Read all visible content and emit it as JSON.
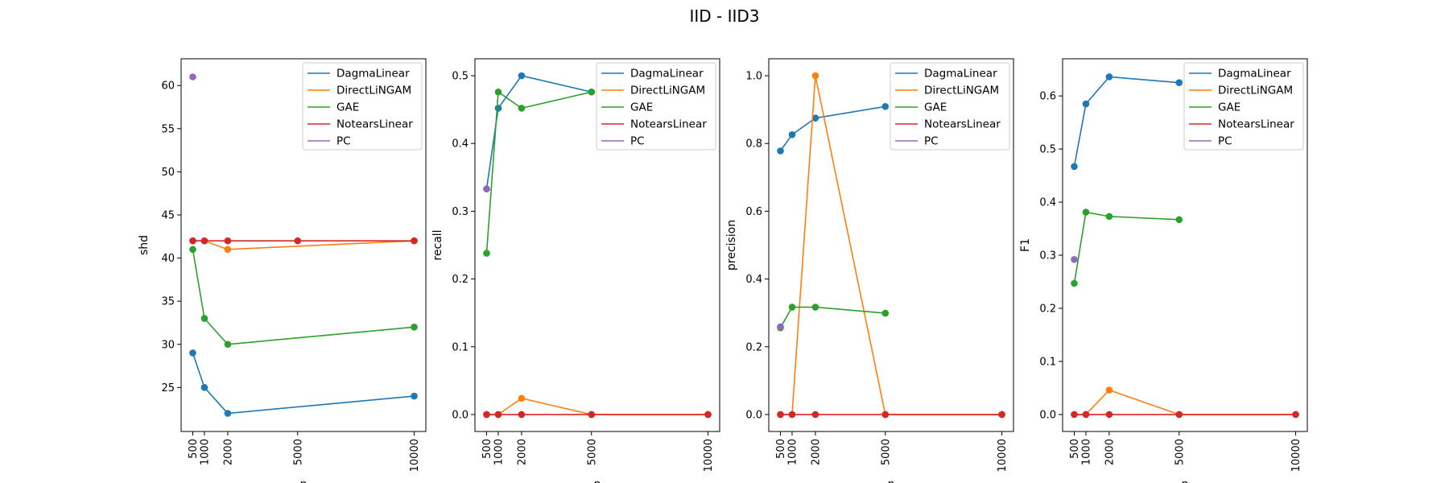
{
  "figure": {
    "title": "IID - IID3"
  },
  "chart_data": [
    {
      "type": "line",
      "xlabel": "n",
      "ylabel": "shd",
      "x": [
        500,
        1000,
        2000,
        5000,
        10000
      ],
      "x_ticks": [
        500,
        1000,
        2000,
        5000,
        10000
      ],
      "xlim": [
        0,
        10500
      ],
      "ylim": [
        19.9,
        63.1
      ],
      "y_ticks": [
        25,
        30,
        35,
        40,
        45,
        50,
        55,
        60
      ],
      "y_tick_labels": [
        "25",
        "30",
        "35",
        "40",
        "45",
        "50",
        "55",
        "60"
      ],
      "legend_position": "top-right",
      "series": [
        {
          "name": "DagmaLinear",
          "color": "#1f77b4",
          "values": [
            29,
            25,
            22,
            null,
            24
          ]
        },
        {
          "name": "DirectLiNGAM",
          "color": "#ff7f0e",
          "values": [
            42,
            42,
            41,
            null,
            42
          ]
        },
        {
          "name": "GAE",
          "color": "#2ca02c",
          "values": [
            41,
            33,
            30,
            null,
            32
          ]
        },
        {
          "name": "NotearsLinear",
          "color": "#d62728",
          "values": [
            42,
            42,
            42,
            42,
            42
          ]
        },
        {
          "name": "PC",
          "color": "#9467bd",
          "values": [
            61,
            null,
            null,
            null,
            null
          ]
        }
      ]
    },
    {
      "type": "line",
      "xlabel": "n",
      "ylabel": "recall",
      "x": [
        500,
        1000,
        2000,
        5000,
        10000
      ],
      "x_ticks": [
        500,
        1000,
        2000,
        5000,
        10000
      ],
      "xlim": [
        0,
        10500
      ],
      "ylim": [
        -0.025,
        0.525
      ],
      "y_ticks": [
        0.0,
        0.1,
        0.2,
        0.3,
        0.4,
        0.5
      ],
      "y_tick_labels": [
        "0.0",
        "0.1",
        "0.2",
        "0.3",
        "0.4",
        "0.5"
      ],
      "legend_position": "top-right",
      "series": [
        {
          "name": "DagmaLinear",
          "color": "#1f77b4",
          "values": [
            0.333,
            0.452,
            0.5,
            0.476,
            null
          ]
        },
        {
          "name": "DirectLiNGAM",
          "color": "#ff7f0e",
          "values": [
            0.0,
            0.0,
            0.024,
            0.0,
            0.0
          ]
        },
        {
          "name": "GAE",
          "color": "#2ca02c",
          "values": [
            0.238,
            0.476,
            0.452,
            0.476,
            null
          ]
        },
        {
          "name": "NotearsLinear",
          "color": "#d62728",
          "values": [
            0.0,
            0.0,
            0.0,
            0.0,
            0.0
          ]
        },
        {
          "name": "PC",
          "color": "#9467bd",
          "values": [
            0.333,
            null,
            null,
            null,
            null
          ]
        }
      ]
    },
    {
      "type": "line",
      "xlabel": "n",
      "ylabel": "precision",
      "x": [
        500,
        1000,
        2000,
        5000,
        10000
      ],
      "x_ticks": [
        500,
        1000,
        2000,
        5000,
        10000
      ],
      "xlim": [
        0,
        10500
      ],
      "ylim": [
        -0.05,
        1.05
      ],
      "y_ticks": [
        0.0,
        0.2,
        0.4,
        0.6,
        0.8,
        1.0
      ],
      "y_tick_labels": [
        "0.0",
        "0.2",
        "0.4",
        "0.6",
        "0.8",
        "1.0"
      ],
      "legend_position": "top-right",
      "series": [
        {
          "name": "DagmaLinear",
          "color": "#1f77b4",
          "values": [
            0.778,
            0.826,
            0.875,
            0.909,
            null
          ]
        },
        {
          "name": "DirectLiNGAM",
          "color": "#ff7f0e",
          "values": [
            0.0,
            0.0,
            1.0,
            0.0,
            0.0
          ]
        },
        {
          "name": "GAE",
          "color": "#2ca02c",
          "values": [
            0.256,
            0.317,
            0.317,
            0.299,
            null
          ]
        },
        {
          "name": "NotearsLinear",
          "color": "#d62728",
          "values": [
            0.0,
            0.0,
            0.0,
            0.0,
            0.0
          ]
        },
        {
          "name": "PC",
          "color": "#9467bd",
          "values": [
            0.259,
            null,
            null,
            null,
            null
          ]
        }
      ]
    },
    {
      "type": "line",
      "xlabel": "n",
      "ylabel": "F1",
      "x": [
        500,
        1000,
        2000,
        5000,
        10000
      ],
      "x_ticks": [
        500,
        1000,
        2000,
        5000,
        10000
      ],
      "xlim": [
        0,
        10500
      ],
      "ylim": [
        -0.032,
        0.67
      ],
      "y_ticks": [
        0.0,
        0.1,
        0.2,
        0.3,
        0.4,
        0.5,
        0.6
      ],
      "y_tick_labels": [
        "0.0",
        "0.1",
        "0.2",
        "0.3",
        "0.4",
        "0.5",
        "0.6"
      ],
      "legend_position": "top-right",
      "series": [
        {
          "name": "DagmaLinear",
          "color": "#1f77b4",
          "values": [
            0.467,
            0.585,
            0.636,
            0.625,
            null
          ]
        },
        {
          "name": "DirectLiNGAM",
          "color": "#ff7f0e",
          "values": [
            0.0,
            0.0,
            0.046,
            0.0,
            0.0
          ]
        },
        {
          "name": "GAE",
          "color": "#2ca02c",
          "values": [
            0.247,
            0.381,
            0.373,
            0.367,
            null
          ]
        },
        {
          "name": "NotearsLinear",
          "color": "#d62728",
          "values": [
            0.0,
            0.0,
            0.0,
            0.0,
            0.0
          ]
        },
        {
          "name": "PC",
          "color": "#9467bd",
          "values": [
            0.292,
            null,
            null,
            null,
            null
          ]
        }
      ]
    }
  ]
}
